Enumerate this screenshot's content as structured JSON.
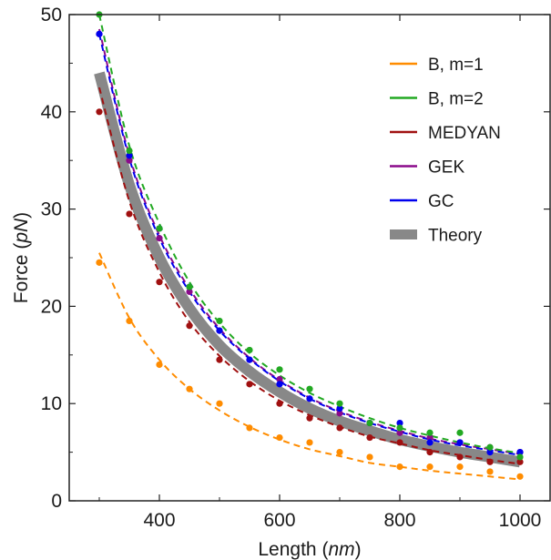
{
  "chart_data": {
    "type": "scatter",
    "xlabel": "Length",
    "xlabel_unit": "nm",
    "ylabel": "Force",
    "ylabel_unit": "pN",
    "xlim": [
      250,
      1050
    ],
    "ylim": [
      0,
      50
    ],
    "xticks": [
      400,
      600,
      800,
      1000
    ],
    "yticks": [
      0,
      10,
      20,
      30,
      40,
      50
    ],
    "grid": false,
    "legend_position": "top-right",
    "series": [
      {
        "name": "B, m=1",
        "color": "#ff8c00",
        "x": [
          300,
          350,
          400,
          450,
          500,
          550,
          600,
          650,
          700,
          750,
          800,
          850,
          900,
          950,
          1000
        ],
        "points": [
          24.5,
          18.5,
          14.0,
          11.5,
          10.0,
          7.5,
          6.5,
          6.0,
          5.0,
          4.5,
          3.5,
          3.5,
          3.5,
          3.0,
          2.5
        ],
        "fit": [
          25.5,
          18.8,
          14.5,
          11.5,
          9.3,
          7.6,
          6.3,
          5.3,
          4.6,
          3.9,
          3.5,
          3.1,
          2.8,
          2.5,
          2.2
        ]
      },
      {
        "name": "B, m=2",
        "color": "#22a922",
        "x": [
          300,
          350,
          400,
          450,
          500,
          550,
          600,
          650,
          700,
          750,
          800,
          850,
          900,
          950,
          1000
        ],
        "points": [
          50.0,
          36.0,
          28.0,
          22.0,
          18.5,
          15.5,
          13.5,
          11.5,
          10.0,
          8.0,
          7.5,
          7.0,
          7.0,
          5.5,
          4.5
        ],
        "fit": [
          50.0,
          36.5,
          28.5,
          22.5,
          18.3,
          15.2,
          12.9,
          11.1,
          9.7,
          8.5,
          7.5,
          6.7,
          6.0,
          5.4,
          4.9
        ]
      },
      {
        "name": "MEDYAN",
        "color": "#a01010",
        "x": [
          300,
          350,
          400,
          450,
          500,
          550,
          600,
          650,
          700,
          750,
          800,
          850,
          900,
          950,
          1000
        ],
        "points": [
          40.0,
          29.5,
          22.5,
          18.0,
          14.5,
          12.0,
          10.0,
          8.5,
          7.5,
          6.5,
          6.0,
          5.0,
          4.5,
          4.0,
          4.0
        ],
        "fit": [
          42.5,
          30.8,
          23.5,
          18.4,
          14.9,
          12.3,
          10.3,
          8.8,
          7.6,
          6.6,
          5.9,
          5.2,
          4.7,
          4.2,
          3.8
        ]
      },
      {
        "name": "GEK",
        "color": "#8b0a8b",
        "x": [
          300,
          350,
          400,
          450,
          500,
          550,
          600,
          650,
          700,
          750,
          800,
          850,
          900,
          950,
          1000
        ],
        "points": [
          48.0,
          35.0,
          27.0,
          21.5,
          17.5,
          14.5,
          12.5,
          10.5,
          9.0,
          8.0,
          7.0,
          6.5,
          6.0,
          5.5,
          5.0
        ],
        "fit": [
          48.5,
          35.5,
          27.3,
          21.8,
          17.7,
          14.7,
          12.4,
          10.6,
          9.2,
          8.1,
          7.2,
          6.4,
          5.8,
          5.3,
          4.8
        ]
      },
      {
        "name": "GC",
        "color": "#0000ee",
        "x": [
          300,
          350,
          400,
          450,
          500,
          550,
          600,
          650,
          700,
          750,
          800,
          850,
          900,
          950,
          1000
        ],
        "points": [
          48.0,
          35.5,
          28.0,
          22.0,
          17.5,
          14.5,
          12.0,
          10.5,
          9.5,
          8.0,
          8.0,
          6.0,
          6.0,
          5.0,
          5.0
        ],
        "fit": [
          48.0,
          35.2,
          27.0,
          21.5,
          17.5,
          14.6,
          12.3,
          10.5,
          9.1,
          8.0,
          7.1,
          6.3,
          5.7,
          5.2,
          4.7
        ]
      },
      {
        "name": "Theory",
        "color": "#888888",
        "x": [
          300,
          350,
          400,
          450,
          500,
          550,
          600,
          650,
          700,
          750,
          800,
          850,
          900,
          950,
          1000
        ],
        "curve": [
          44.0,
          32.5,
          25.0,
          19.8,
          16.0,
          13.3,
          11.2,
          9.5,
          8.2,
          7.2,
          6.3,
          5.6,
          5.0,
          4.5,
          4.0
        ]
      }
    ]
  }
}
